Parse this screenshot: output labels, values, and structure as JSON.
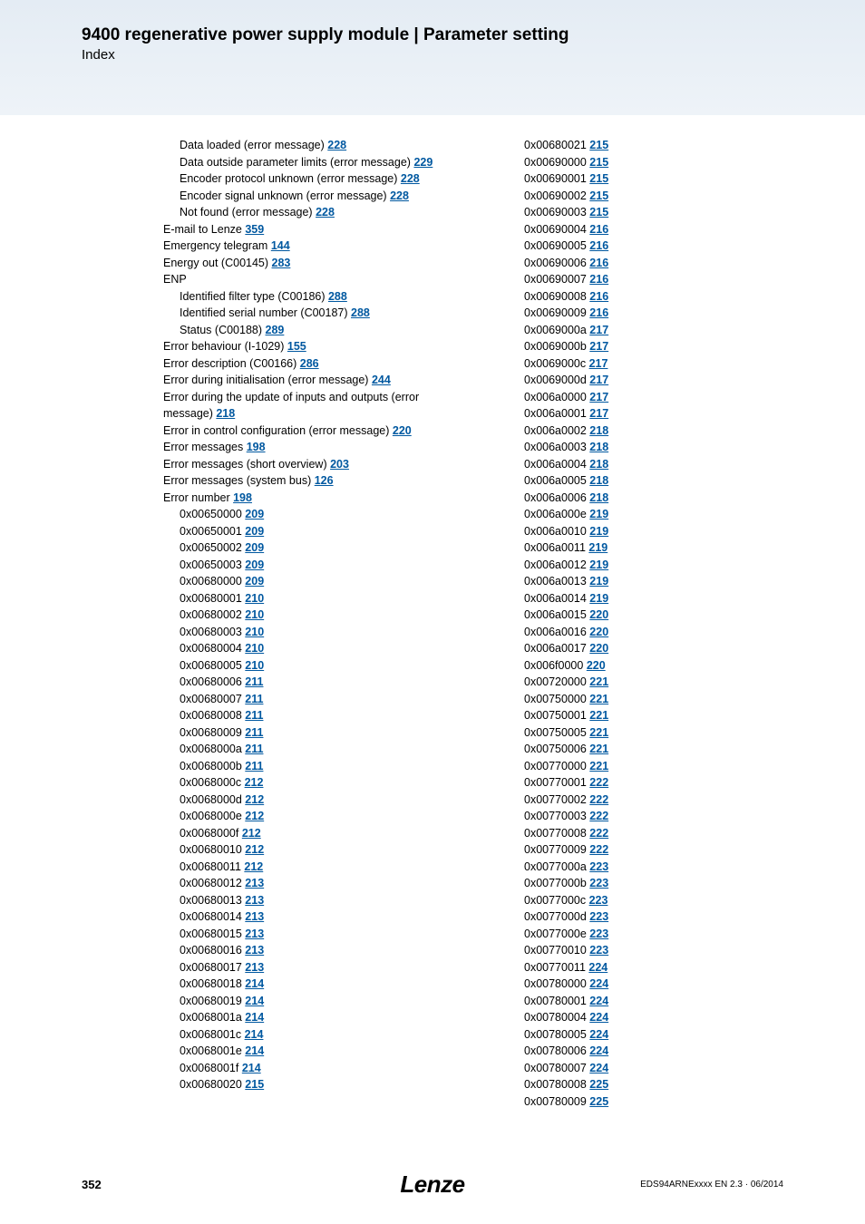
{
  "header": {
    "title": "9400 regenerative power supply module | Parameter setting",
    "subtitle": "Index"
  },
  "footer": {
    "page": "352",
    "brand": "Lenze",
    "docid": "EDS94ARNExxxx EN 2.3 · 06/2014"
  },
  "link_color": "#0058a0",
  "col1_text": [
    {
      "t": "Data loaded (error message)",
      "p": "228",
      "sub": true
    },
    {
      "t": "Data outside parameter limits (error message)",
      "p": "229",
      "sub": true
    },
    {
      "t": "Encoder protocol unknown (error message)",
      "p": "228",
      "sub": true
    },
    {
      "t": "Encoder signal unknown (error message)",
      "p": "228",
      "sub": true
    },
    {
      "t": "Not found (error message)",
      "p": "228",
      "sub": true
    },
    {
      "t": "E-mail to Lenze",
      "p": "359"
    },
    {
      "t": "Emergency telegram",
      "p": "144"
    },
    {
      "t": "Energy out (C00145)",
      "p": "283"
    },
    {
      "t": "ENP",
      "p": ""
    },
    {
      "t": "Identified filter type (C00186)",
      "p": "288",
      "sub": true
    },
    {
      "t": "Identified serial number (C00187)",
      "p": "288",
      "sub": true
    },
    {
      "t": "Status (C00188)",
      "p": "289",
      "sub": true
    },
    {
      "t": "Error behaviour (I-1029)",
      "p": "155"
    },
    {
      "t": "Error description (C00166)",
      "p": "286"
    },
    {
      "t": "Error during initialisation (error message)",
      "p": "244"
    },
    {
      "t": "Error during the update of inputs and outputs (error message)",
      "p": "218",
      "wrap": true
    },
    {
      "t": "Error in control configuration (error message)",
      "p": "220"
    },
    {
      "t": "Error messages",
      "p": "198"
    },
    {
      "t": "Error messages (short overview)",
      "p": "203"
    },
    {
      "t": "Error messages (system bus)",
      "p": "126"
    },
    {
      "t": "Error number",
      "p": "198"
    }
  ],
  "col1_codes": [
    {
      "c": "0x00650000",
      "p": "209"
    },
    {
      "c": "0x00650001",
      "p": "209"
    },
    {
      "c": "0x00650002",
      "p": "209"
    },
    {
      "c": "0x00650003",
      "p": "209"
    },
    {
      "c": "0x00680000",
      "p": "209"
    },
    {
      "c": "0x00680001",
      "p": "210"
    },
    {
      "c": "0x00680002",
      "p": "210"
    },
    {
      "c": "0x00680003",
      "p": "210"
    },
    {
      "c": "0x00680004",
      "p": "210"
    },
    {
      "c": "0x00680005",
      "p": "210"
    },
    {
      "c": "0x00680006",
      "p": "211"
    },
    {
      "c": "0x00680007",
      "p": "211"
    },
    {
      "c": "0x00680008",
      "p": "211"
    },
    {
      "c": "0x00680009",
      "p": "211"
    },
    {
      "c": "0x0068000a",
      "p": "211"
    },
    {
      "c": "0x0068000b",
      "p": "211"
    },
    {
      "c": "0x0068000c",
      "p": "212"
    },
    {
      "c": "0x0068000d",
      "p": "212"
    },
    {
      "c": "0x0068000e",
      "p": "212"
    },
    {
      "c": "0x0068000f",
      "p": "212"
    },
    {
      "c": "0x00680010",
      "p": "212"
    },
    {
      "c": "0x00680011",
      "p": "212"
    },
    {
      "c": "0x00680012",
      "p": "213"
    },
    {
      "c": "0x00680013",
      "p": "213"
    },
    {
      "c": "0x00680014",
      "p": "213"
    },
    {
      "c": "0x00680015",
      "p": "213"
    },
    {
      "c": "0x00680016",
      "p": "213"
    },
    {
      "c": "0x00680017",
      "p": "213"
    },
    {
      "c": "0x00680018",
      "p": "214"
    },
    {
      "c": "0x00680019",
      "p": "214"
    },
    {
      "c": "0x0068001a",
      "p": "214"
    },
    {
      "c": "0x0068001c",
      "p": "214"
    },
    {
      "c": "0x0068001e",
      "p": "214"
    },
    {
      "c": "0x0068001f",
      "p": "214"
    },
    {
      "c": "0x00680020",
      "p": "215"
    }
  ],
  "col2_codes": [
    {
      "c": "0x00680021",
      "p": "215"
    },
    {
      "c": "0x00690000",
      "p": "215"
    },
    {
      "c": "0x00690001",
      "p": "215"
    },
    {
      "c": "0x00690002",
      "p": "215"
    },
    {
      "c": "0x00690003",
      "p": "215"
    },
    {
      "c": "0x00690004",
      "p": "216"
    },
    {
      "c": "0x00690005",
      "p": "216"
    },
    {
      "c": "0x00690006",
      "p": "216"
    },
    {
      "c": "0x00690007",
      "p": "216"
    },
    {
      "c": "0x00690008",
      "p": "216"
    },
    {
      "c": "0x00690009",
      "p": "216"
    },
    {
      "c": "0x0069000a",
      "p": "217"
    },
    {
      "c": "0x0069000b",
      "p": "217"
    },
    {
      "c": "0x0069000c",
      "p": "217"
    },
    {
      "c": "0x0069000d",
      "p": "217"
    },
    {
      "c": "0x006a0000",
      "p": "217"
    },
    {
      "c": "0x006a0001",
      "p": "217"
    },
    {
      "c": "0x006a0002",
      "p": "218"
    },
    {
      "c": "0x006a0003",
      "p": "218"
    },
    {
      "c": "0x006a0004",
      "p": "218"
    },
    {
      "c": "0x006a0005",
      "p": "218"
    },
    {
      "c": "0x006a0006",
      "p": "218"
    },
    {
      "c": "0x006a000e",
      "p": "219"
    },
    {
      "c": "0x006a0010",
      "p": "219"
    },
    {
      "c": "0x006a0011",
      "p": "219"
    },
    {
      "c": "0x006a0012",
      "p": "219"
    },
    {
      "c": "0x006a0013",
      "p": "219"
    },
    {
      "c": "0x006a0014",
      "p": "219"
    },
    {
      "c": "0x006a0015",
      "p": "220"
    },
    {
      "c": "0x006a0016",
      "p": "220"
    },
    {
      "c": "0x006a0017",
      "p": "220"
    },
    {
      "c": "0x006f0000",
      "p": "220"
    },
    {
      "c": "0x00720000",
      "p": "221"
    },
    {
      "c": "0x00750000",
      "p": "221"
    },
    {
      "c": "0x00750001",
      "p": "221"
    },
    {
      "c": "0x00750005",
      "p": "221"
    },
    {
      "c": "0x00750006",
      "p": "221"
    },
    {
      "c": "0x00770000",
      "p": "221"
    },
    {
      "c": "0x00770001",
      "p": "222"
    },
    {
      "c": "0x00770002",
      "p": "222"
    },
    {
      "c": "0x00770003",
      "p": "222"
    },
    {
      "c": "0x00770008",
      "p": "222"
    },
    {
      "c": "0x00770009",
      "p": "222"
    },
    {
      "c": "0x0077000a",
      "p": "223"
    },
    {
      "c": "0x0077000b",
      "p": "223"
    },
    {
      "c": "0x0077000c",
      "p": "223"
    },
    {
      "c": "0x0077000d",
      "p": "223"
    },
    {
      "c": "0x0077000e",
      "p": "223"
    },
    {
      "c": "0x00770010",
      "p": "223"
    },
    {
      "c": "0x00770011",
      "p": "224"
    },
    {
      "c": "0x00780000",
      "p": "224"
    },
    {
      "c": "0x00780001",
      "p": "224"
    },
    {
      "c": "0x00780004",
      "p": "224"
    },
    {
      "c": "0x00780005",
      "p": "224"
    },
    {
      "c": "0x00780006",
      "p": "224"
    },
    {
      "c": "0x00780007",
      "p": "224"
    },
    {
      "c": "0x00780008",
      "p": "225"
    },
    {
      "c": "0x00780009",
      "p": "225"
    }
  ]
}
